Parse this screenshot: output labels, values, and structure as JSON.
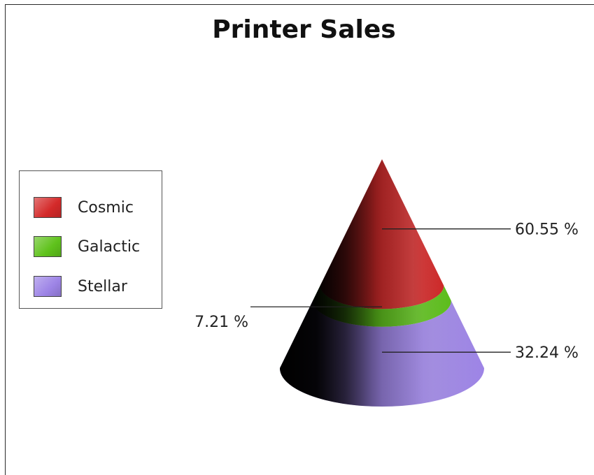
{
  "chart_data": {
    "type": "cone",
    "title": "Printer Sales",
    "legend_position": "left",
    "series": [
      {
        "name": "Cosmic",
        "value": 60.55,
        "label": "60.55 %",
        "color": "#d42a2a",
        "label_side": "right"
      },
      {
        "name": "Galactic",
        "value": 7.21,
        "label": "7.21 %",
        "color": "#5fc21c",
        "label_side": "left"
      },
      {
        "name": "Stellar",
        "value": 32.24,
        "label": "32.24 %",
        "color": "#9d84e6",
        "label_side": "right"
      }
    ]
  }
}
